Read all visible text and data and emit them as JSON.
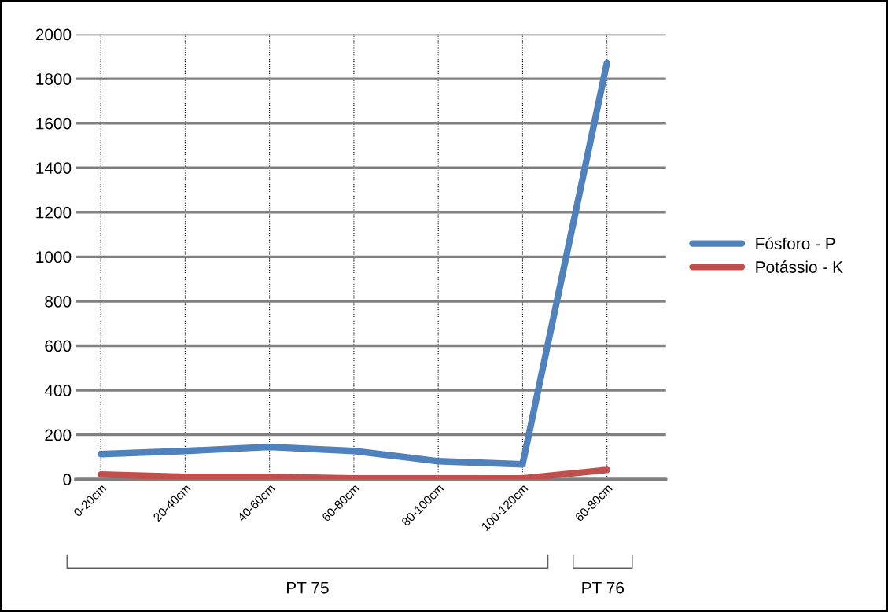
{
  "chart_data": {
    "type": "line",
    "categories": [
      "0-20cm",
      "20-40cm",
      "40-60cm",
      "60-80cm",
      "80-100cm",
      "100-120cm",
      "60-80cm"
    ],
    "series": [
      {
        "name": "Fósforo - P",
        "color": "#4f81bd",
        "values": [
          113,
          127,
          145,
          127,
          81,
          67,
          1872
        ]
      },
      {
        "name": "Potássio - K",
        "color": "#c0504d",
        "values": [
          21,
          11,
          11,
          4,
          4,
          4,
          42
        ]
      }
    ],
    "ylim": [
      0,
      2000
    ],
    "yticks": [
      0,
      200,
      400,
      600,
      800,
      1000,
      1200,
      1400,
      1600,
      1800,
      2000
    ],
    "grid": true,
    "legend": "right",
    "marker": "none",
    "line_style": "solid",
    "annotations": [
      "PT 75",
      "PT 76"
    ]
  }
}
